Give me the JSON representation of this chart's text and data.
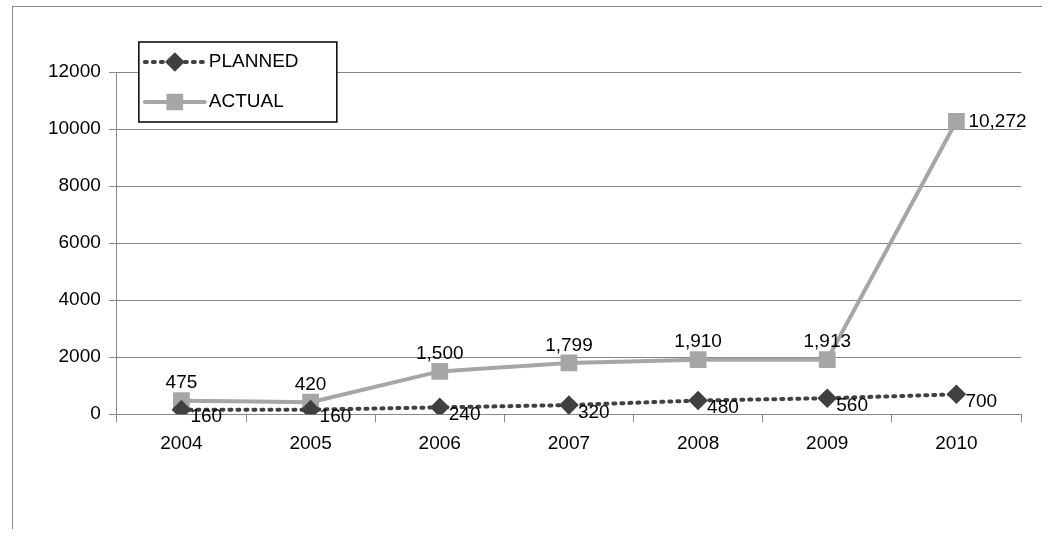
{
  "chart_data": {
    "type": "line",
    "categories": [
      "2004",
      "2005",
      "2006",
      "2007",
      "2008",
      "2009",
      "2010"
    ],
    "series": [
      {
        "name": "PLANNED",
        "color": "#404040",
        "marker": "diamond",
        "line_style": "dotted",
        "values": [
          160,
          160,
          240,
          320,
          480,
          560,
          700
        ],
        "value_labels": [
          "160",
          "160",
          "240",
          "320",
          "480",
          "560",
          "700"
        ]
      },
      {
        "name": "ACTUAL",
        "color": "#a6a6a6",
        "marker": "square",
        "line_style": "solid",
        "values": [
          475,
          420,
          1500,
          1799,
          1910,
          1913,
          10272
        ],
        "value_labels": [
          "475",
          "420",
          "1,500",
          "1,799",
          "1,910",
          "1,913",
          "10,272"
        ]
      }
    ],
    "ylim": [
      0,
      12000
    ],
    "yticks": [
      0,
      2000,
      4000,
      6000,
      8000,
      10000,
      12000
    ],
    "grid": "y",
    "legend": "top left"
  }
}
